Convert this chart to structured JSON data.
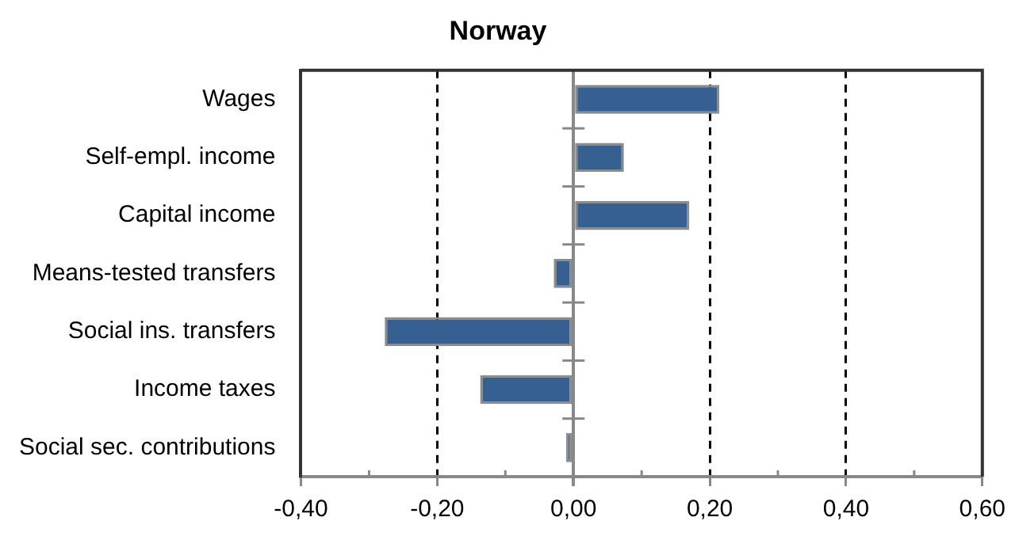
{
  "chart_data": {
    "type": "bar",
    "orientation": "horizontal",
    "title": "Norway",
    "categories": [
      "Wages",
      "Self-empl. income",
      "Capital income",
      "Means-tested transfers",
      "Social ins. transfers",
      "Income taxes",
      "Social sec. contributions"
    ],
    "values": [
      0.214,
      0.074,
      0.17,
      -0.029,
      -0.277,
      -0.137,
      -0.011
    ],
    "color": "#366092",
    "xlim": [
      -0.4,
      0.6
    ],
    "xticks": [
      {
        "value": -0.4,
        "label": "-0,40"
      },
      {
        "value": -0.2,
        "label": "-0,20"
      },
      {
        "value": 0,
        "label": "0,00"
      },
      {
        "value": 0.2,
        "label": "0,20"
      },
      {
        "value": 0.4,
        "label": "0,40"
      },
      {
        "value": 0.6,
        "label": "0,60"
      }
    ],
    "grid": "x",
    "line_style": "dashed",
    "legend": false
  }
}
